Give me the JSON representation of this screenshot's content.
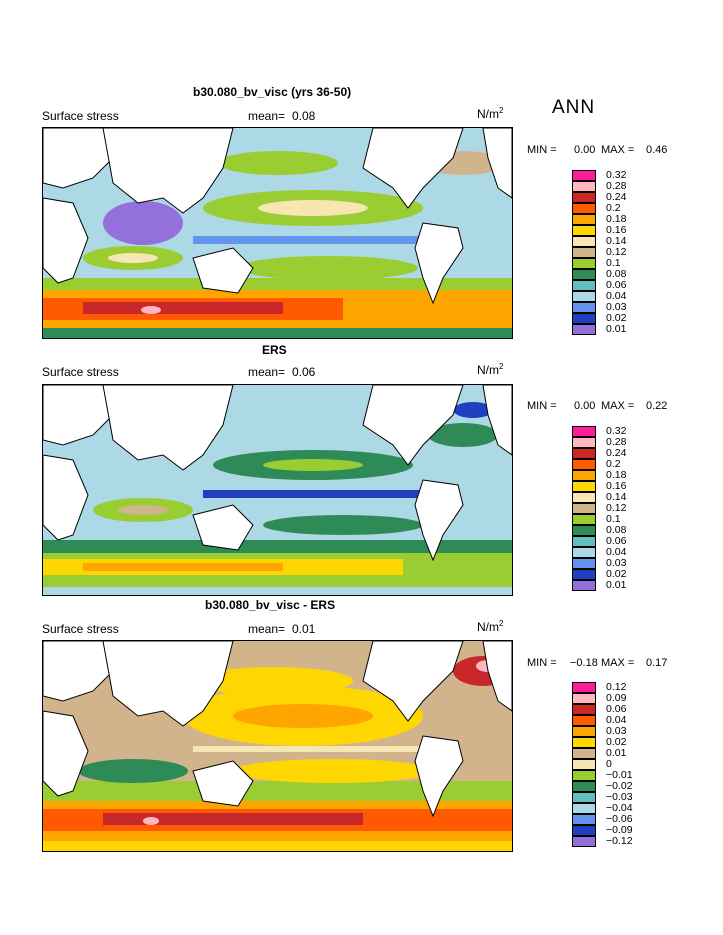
{
  "season": "ANN",
  "panels": [
    {
      "title": "b30.080_bv_visc (yrs 36-50)",
      "field": "Surface stress",
      "mean_label": "mean=",
      "mean_value": "0.08",
      "units_base": "N/m",
      "units_exp": "2",
      "min_label": "MIN =",
      "min_value": "0.00",
      "max_label": "MAX =",
      "max_value": "0.46",
      "levels": [
        "0.32",
        "0.28",
        "0.24",
        "0.2",
        "0.18",
        "0.16",
        "0.14",
        "0.12",
        "0.1",
        "0.08",
        "0.06",
        "0.04",
        "0.03",
        "0.02",
        "0.01"
      ],
      "colors": [
        "#ff1a99",
        "#ffb6c1",
        "#c8282a",
        "#ff5a00",
        "#ffa500",
        "#ffd700",
        "#f5e6b4",
        "#d2b48c",
        "#9acd32",
        "#2e8b57",
        "#5fbfbf",
        "#add8e6",
        "#6495ed",
        "#2040c0",
        "#9370db"
      ]
    },
    {
      "title": "ERS",
      "field": "Surface stress",
      "mean_label": "mean=",
      "mean_value": "0.06",
      "units_base": "N/m",
      "units_exp": "2",
      "min_label": "MIN =",
      "min_value": "0.00",
      "max_label": "MAX =",
      "max_value": "0.22",
      "levels": [
        "0.32",
        "0.28",
        "0.24",
        "0.2",
        "0.18",
        "0.16",
        "0.14",
        "0.12",
        "0.1",
        "0.08",
        "0.06",
        "0.04",
        "0.03",
        "0.02",
        "0.01"
      ],
      "colors": [
        "#ff1a99",
        "#ffb6c1",
        "#c8282a",
        "#ff5a00",
        "#ffa500",
        "#ffd700",
        "#f5e6b4",
        "#d2b48c",
        "#9acd32",
        "#2e8b57",
        "#5fbfbf",
        "#add8e6",
        "#6495ed",
        "#2040c0",
        "#9370db"
      ]
    },
    {
      "title": "b30.080_bv_visc - ERS",
      "field": "Surface stress",
      "mean_label": "mean=",
      "mean_value": "0.01",
      "units_base": "N/m",
      "units_exp": "2",
      "min_label": "MIN =",
      "min_value": "−0.18",
      "max_label": "MAX =",
      "max_value": "0.17",
      "levels": [
        "0.12",
        "0.09",
        "0.06",
        "0.04",
        "0.03",
        "0.02",
        "0.01",
        "0",
        "−0.01",
        "−0.02",
        "−0.03",
        "−0.04",
        "−0.06",
        "−0.09",
        "−0.12"
      ],
      "colors": [
        "#ff1a99",
        "#ffb6c1",
        "#c8282a",
        "#ff5a00",
        "#ffa500",
        "#ffd700",
        "#d2b48c",
        "#f5e6b4",
        "#9acd32",
        "#2e8b57",
        "#5fbfbf",
        "#add8e6",
        "#6495ed",
        "#2040c0",
        "#9370db"
      ]
    }
  ]
}
